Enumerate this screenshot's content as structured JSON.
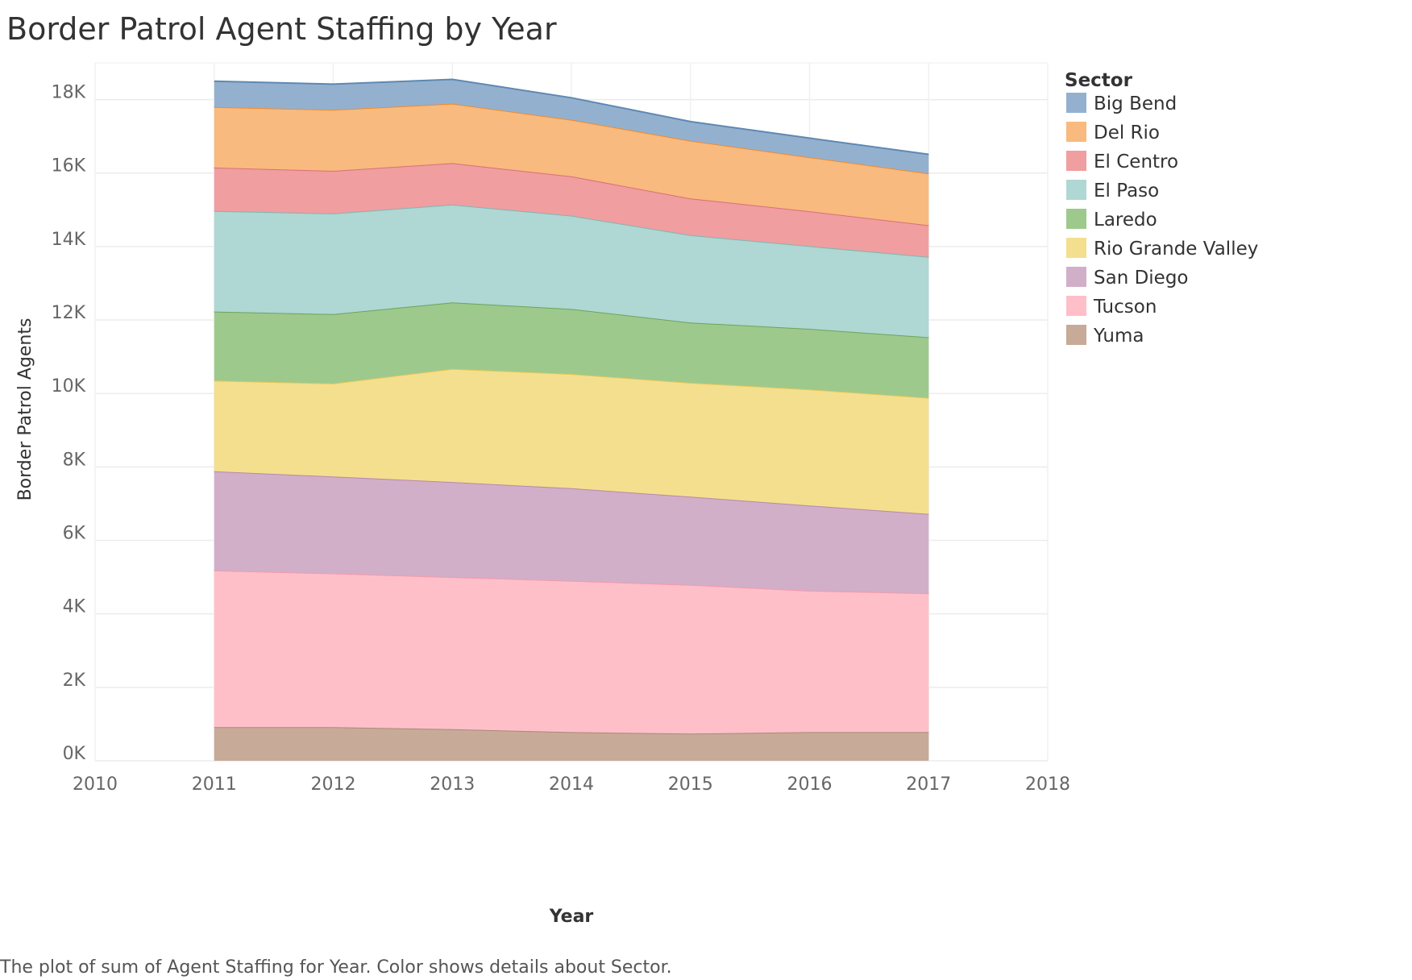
{
  "page": {
    "caption": "The plot of sum of Agent Staffing for Year.  Color shows details about Sector."
  },
  "chart_data": {
    "type": "area",
    "stacked": true,
    "title": "Border Patrol Agent Staffing by Year",
    "xlabel": "Year",
    "ylabel": "Border Patrol Agents",
    "x": [
      2011,
      2012,
      2013,
      2014,
      2015,
      2016,
      2017
    ],
    "x_ticks": [
      "2010",
      "2011",
      "2012",
      "2013",
      "2014",
      "2015",
      "2016",
      "2017",
      "2018"
    ],
    "xlim": [
      2010,
      2018
    ],
    "y_ticks": [
      "0K",
      "2K",
      "4K",
      "6K",
      "8K",
      "10K",
      "12K",
      "14K",
      "16K",
      "18K"
    ],
    "y_tick_values": [
      0,
      2000,
      4000,
      6000,
      8000,
      10000,
      12000,
      14000,
      16000,
      18000
    ],
    "ylim": [
      0,
      19000
    ],
    "grid": true,
    "legend_title": "Sector",
    "legend_position": "right",
    "series": [
      {
        "name": "Yuma",
        "color": "#c7aa98",
        "line": "#a88a78",
        "values": [
          917,
          915,
          860,
          780,
          740,
          780,
          780
        ]
      },
      {
        "name": "Tucson",
        "color": "#ffbfc9",
        "line": "#f59aab",
        "values": [
          4263,
          4185,
          4140,
          4120,
          4050,
          3850,
          3780
        ]
      },
      {
        "name": "San Diego",
        "color": "#d1afc8",
        "line": "#b987ad",
        "values": [
          2700,
          2640,
          2590,
          2520,
          2400,
          2320,
          2160
        ]
      },
      {
        "name": "Rio Grande Valley",
        "color": "#f4df8e",
        "line": "#e6c75a",
        "values": [
          2470,
          2530,
          3080,
          3110,
          3100,
          3160,
          3160
        ]
      },
      {
        "name": "Laredo",
        "color": "#9ec98d",
        "line": "#6aa55a",
        "values": [
          1880,
          1890,
          1810,
          1770,
          1640,
          1650,
          1650
        ]
      },
      {
        "name": "El Paso",
        "color": "#afd7d3",
        "line": "#7bb8b3",
        "values": [
          2740,
          2740,
          2660,
          2540,
          2380,
          2250,
          2190
        ]
      },
      {
        "name": "El Centro",
        "color": "#f09ea0",
        "line": "#d8707a",
        "values": [
          1180,
          1160,
          1130,
          1070,
          1000,
          950,
          860
        ]
      },
      {
        "name": "Del Rio",
        "color": "#f8ba7e",
        "line": "#f08a2e",
        "values": [
          1650,
          1660,
          1620,
          1540,
          1570,
          1470,
          1410
        ]
      },
      {
        "name": "Big Bend",
        "color": "#93b1cf",
        "line": "#5f88b2",
        "values": [
          700,
          700,
          660,
          600,
          520,
          520,
          520
        ]
      }
    ],
    "legend_order": [
      "Big Bend",
      "Del Rio",
      "El Centro",
      "El Paso",
      "Laredo",
      "Rio Grande Valley",
      "San Diego",
      "Tucson",
      "Yuma"
    ]
  }
}
